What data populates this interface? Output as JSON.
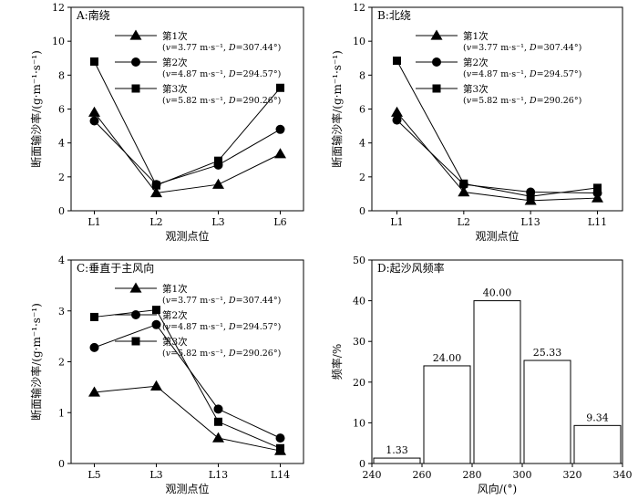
{
  "chart_data": [
    {
      "type": "line",
      "title": "A:南绕",
      "xlabel": "观测点位",
      "ylabel": "断面输沙率/(g·m⁻¹·s⁻¹)",
      "categories": [
        "L1",
        "L2",
        "L3",
        "L6"
      ],
      "ylim": [
        0,
        12
      ],
      "yticks": [
        0,
        2,
        4,
        6,
        8,
        10,
        12
      ],
      "legend": "top-center",
      "series": [
        {
          "name": "第1次",
          "params": "(v=3.77 m·s⁻¹, D=307.44°)",
          "marker": "triangle",
          "values": [
            5.8,
            1.05,
            1.55,
            3.35
          ]
        },
        {
          "name": "第2次",
          "params": "(v=4.87 m·s⁻¹, D=294.57°)",
          "marker": "circle",
          "values": [
            5.3,
            1.55,
            2.7,
            4.8
          ]
        },
        {
          "name": "第3次",
          "params": "(v=5.82 m·s⁻¹, D=290.26°)",
          "marker": "square",
          "values": [
            8.8,
            1.5,
            2.95,
            7.25
          ]
        }
      ]
    },
    {
      "type": "line",
      "title": "B:北绕",
      "xlabel": "观测点位",
      "ylabel": "断面输沙率/(g·m⁻¹·s⁻¹)",
      "categories": [
        "L1",
        "L2",
        "L13",
        "L11"
      ],
      "ylim": [
        0,
        12
      ],
      "yticks": [
        0,
        2,
        4,
        6,
        8,
        10,
        12
      ],
      "legend": "top-center",
      "series": [
        {
          "name": "第1次",
          "params": "(v=3.77 m·s⁻¹, D=307.44°)",
          "marker": "triangle",
          "values": [
            5.8,
            1.1,
            0.6,
            0.75
          ]
        },
        {
          "name": "第2次",
          "params": "(v=4.87 m·s⁻¹, D=294.57°)",
          "marker": "circle",
          "values": [
            5.35,
            1.55,
            1.1,
            1.05
          ]
        },
        {
          "name": "第3次",
          "params": "(v=5.82 m·s⁻¹, D=290.26°)",
          "marker": "square",
          "values": [
            8.85,
            1.6,
            0.85,
            1.35
          ]
        }
      ]
    },
    {
      "type": "line",
      "title": "C:垂直于主风向",
      "xlabel": "观测点位",
      "ylabel": "断面输沙率/(g·m⁻¹·s⁻¹)",
      "categories": [
        "L5",
        "L3",
        "L13",
        "L14"
      ],
      "ylim": [
        0,
        4
      ],
      "yticks": [
        0,
        1,
        2,
        3,
        4
      ],
      "legend": "top-center",
      "series": [
        {
          "name": "第1次",
          "params": "(v=3.77 m·s⁻¹, D=307.44°)",
          "marker": "triangle",
          "values": [
            1.4,
            1.52,
            0.5,
            0.25
          ]
        },
        {
          "name": "第2次",
          "params": "(v=4.87 m·s⁻¹, D=294.57°)",
          "marker": "circle",
          "values": [
            2.28,
            2.73,
            1.07,
            0.5
          ]
        },
        {
          "name": "第3次",
          "params": "(v=5.82 m·s⁻¹, D=290.26°)",
          "marker": "square",
          "values": [
            2.88,
            3.02,
            0.82,
            0.3
          ]
        }
      ]
    },
    {
      "type": "bar",
      "title": "D:起沙风频率",
      "xlabel": "风向/(°)",
      "ylabel": "频率/%",
      "bins": [
        [
          240,
          260
        ],
        [
          260,
          280
        ],
        [
          280,
          300
        ],
        [
          300,
          320
        ],
        [
          320,
          340
        ]
      ],
      "values": [
        1.33,
        24.0,
        40.0,
        25.33,
        9.34
      ],
      "data_labels": [
        "1.33",
        "24.00",
        "40.00",
        "25.33",
        "9.34"
      ],
      "xlim": [
        240,
        340
      ],
      "xticks": [
        240,
        260,
        280,
        300,
        320,
        340
      ],
      "ylim": [
        0,
        50
      ],
      "yticks": [
        0,
        10,
        20,
        30,
        40,
        50
      ]
    }
  ]
}
